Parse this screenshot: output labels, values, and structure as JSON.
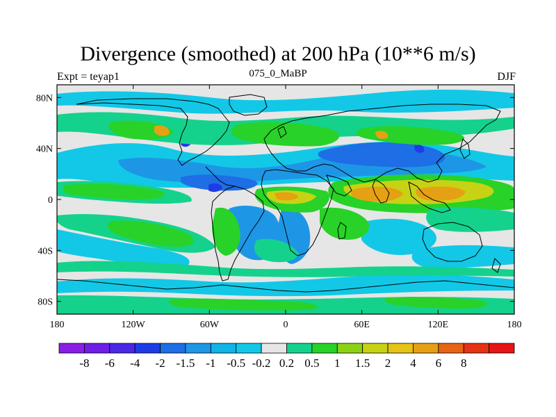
{
  "title": "Divergence (smoothed) at 200 hPa (10**6 m/s)",
  "left_string": "Expt = teyap1",
  "center_string": "075_0_MaBP",
  "right_string": "DJF",
  "y_ticks": [
    "80N",
    "40N",
    "0",
    "40S",
    "80S"
  ],
  "y_tick_values": [
    80,
    40,
    0,
    -40,
    -80
  ],
  "x_ticks": [
    "180",
    "120W",
    "60W",
    "0",
    "60E",
    "120E",
    "180"
  ],
  "x_tick_values": [
    -180,
    -120,
    -60,
    0,
    60,
    120,
    180
  ],
  "colorbar": {
    "colors": [
      "#8b1ee6",
      "#6e1ee6",
      "#4b28e6",
      "#1e3ce6",
      "#1e6ee6",
      "#1e96e6",
      "#12b4e6",
      "#12c8e6",
      "#e6e6e6",
      "#14d28c",
      "#28d228",
      "#8cd214",
      "#c8d214",
      "#e6c314",
      "#e6a014",
      "#e66414",
      "#e63214",
      "#e61414"
    ],
    "labels": [
      "-8",
      "-6",
      "-4",
      "-2",
      "-1.5",
      "-1",
      "-0.5",
      "-0.2",
      "0.2",
      "0.5",
      "1",
      "1.5",
      "2",
      "4",
      "6",
      "8"
    ]
  },
  "legend_colors": {
    "background": "#e6e6e6",
    "neg_light": "#12c8e6",
    "neg_mid": "#1e96e6",
    "neg_strong": "#1e6ee6",
    "neg_max": "#1e3ce6",
    "pos_light": "#14d28c",
    "pos_mid": "#28d228",
    "pos_strong": "#8cd214",
    "pos_high": "#c8d214",
    "pos_max": "#e6a014"
  }
}
